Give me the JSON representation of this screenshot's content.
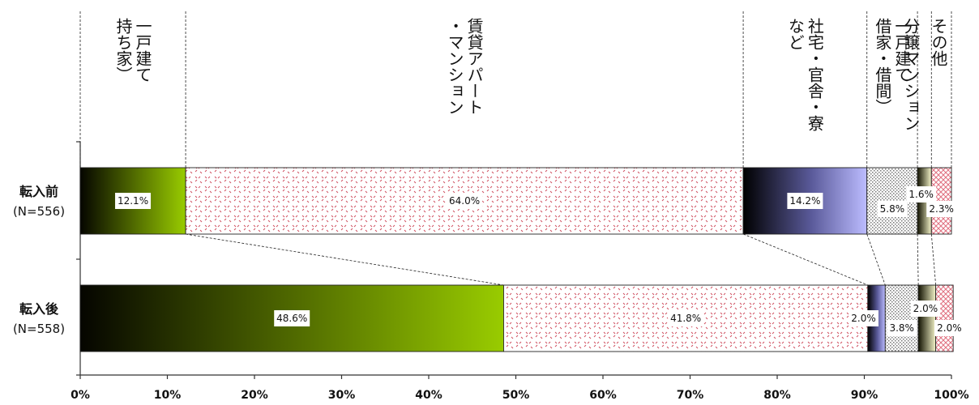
{
  "chart_data": {
    "type": "bar",
    "orientation": "horizontal",
    "stacked": true,
    "xlim": [
      0,
      100
    ],
    "x_ticks": [
      "0%",
      "10%",
      "20%",
      "30%",
      "40%",
      "50%",
      "60%",
      "70%",
      "80%",
      "90%",
      "100%"
    ],
    "categories": [
      {
        "label": "転入前",
        "n": "(N=556)"
      },
      {
        "label": "転入後",
        "n": "(N=558)"
      }
    ],
    "series": [
      {
        "name": "一戸建て（持ち家）",
        "values": [
          12.1,
          48.6
        ],
        "labels": [
          "12.1%",
          "48.6%"
        ]
      },
      {
        "name": "賃貸アパート・マンション",
        "values": [
          64.0,
          41.8
        ],
        "labels": [
          "64.0%",
          "41.8%"
        ]
      },
      {
        "name": "社宅・官舎・寮など",
        "values": [
          14.2,
          2.0
        ],
        "labels": [
          "14.2%",
          "2.0%"
        ]
      },
      {
        "name": "一戸建て（借家・借間）",
        "values": [
          5.8,
          3.8
        ],
        "labels": [
          "5.8%",
          "3.8%"
        ]
      },
      {
        "name": "分譲マンション",
        "values": [
          1.6,
          2.0
        ],
        "labels": [
          "1.6%",
          "2.0%"
        ]
      },
      {
        "name": "その他",
        "values": [
          2.3,
          2.0
        ],
        "labels": [
          "2.3%",
          "2.0%"
        ]
      }
    ],
    "headers": [
      {
        "lines": [
          "一戸建て",
          "持ち家）"
        ]
      },
      {
        "lines": [
          "賃貸アパート",
          "・マンション"
        ]
      },
      {
        "lines": [
          "社宅・官舎・寮",
          "など"
        ]
      },
      {
        "lines": [
          "一戸建て",
          "借家・借間）"
        ]
      },
      {
        "lines": [
          "分譲マンション"
        ]
      },
      {
        "lines": [
          "その他"
        ]
      }
    ],
    "colors": {
      "gradient_dark": "#0a0a00",
      "gradient_green": "#99cc00",
      "rental_dots": "#d05060",
      "company_light": "#b8b8ff",
      "rent_house_dots": "#888888",
      "condo_yellow": "#f0f0c0",
      "other_hatch": "#e07080"
    }
  }
}
